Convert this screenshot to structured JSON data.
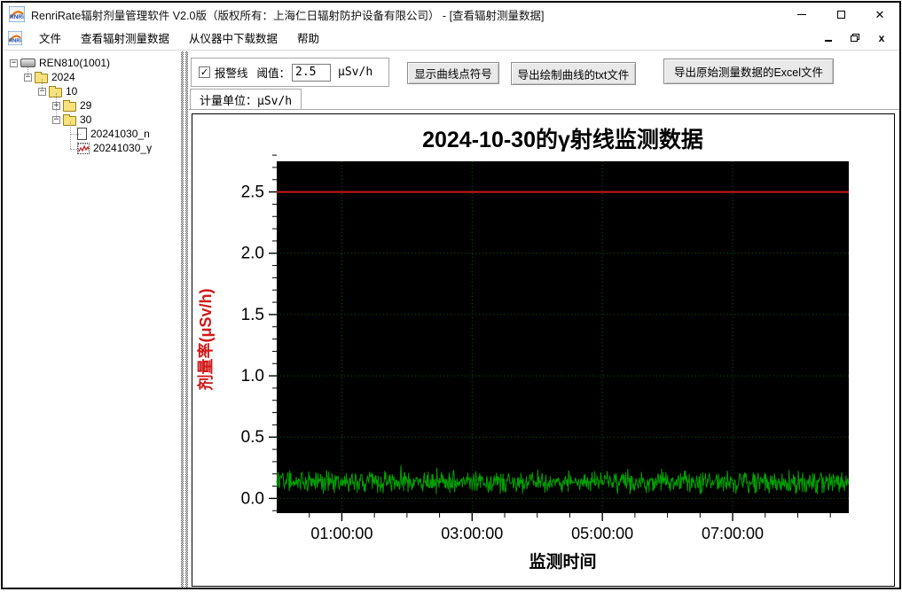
{
  "window": {
    "title": "RenriRate辐射剂量管理软件 V2.0版（版权所有：上海仁日辐射防护设备有限公司） - [查看辐射测量数据]",
    "controls": {
      "minimize": "minimize",
      "maximize": "maximize",
      "close": "✕"
    }
  },
  "menu": {
    "items": [
      {
        "name": "menu-item-file",
        "label": "文件"
      },
      {
        "name": "menu-item-view-data",
        "label": "查看辐射测量数据"
      },
      {
        "name": "menu-item-download",
        "label": "从仪器中下载数据"
      },
      {
        "name": "menu-item-help",
        "label": "帮助"
      }
    ],
    "mdi_controls": {
      "minimize": "minimize",
      "restore": "restore",
      "close": "x"
    }
  },
  "tree": {
    "items": [
      {
        "name": "tree-item-ren810",
        "label": "REN810(1001)",
        "level": 0,
        "expander": "minus",
        "icon": "device-icon"
      },
      {
        "name": "tree-item-2024",
        "label": "2024",
        "level": 1,
        "expander": "minus",
        "icon": "folder-icon"
      },
      {
        "name": "tree-item-10",
        "label": "10",
        "level": 2,
        "expander": "minus",
        "icon": "folder-icon"
      },
      {
        "name": "tree-item-29",
        "label": "29",
        "level": 3,
        "expander": "plus",
        "icon": "folder-icon"
      },
      {
        "name": "tree-item-30",
        "label": "30",
        "level": 3,
        "expander": "minus",
        "icon": "folder-icon"
      },
      {
        "name": "tree-item-20241030-n",
        "label": "20241030_n",
        "level": 4,
        "expander": "none",
        "icon": "document-icon"
      },
      {
        "name": "tree-item-20241030-g",
        "label": "20241030_γ",
        "level": 4,
        "expander": "none",
        "icon": "curve-file-icon"
      }
    ]
  },
  "controls": {
    "alarm_checkbox_label": "报警线",
    "alarm_checked": true,
    "alarm_checkmark": "✓",
    "threshold_label": "阈值：",
    "threshold_value": "2.5",
    "threshold_unit": "μSv/h",
    "buttons": [
      {
        "name": "show-points-button",
        "label": "显示曲线点符号"
      },
      {
        "name": "export-txt-button",
        "label": "导出绘制曲线的txt文件"
      },
      {
        "name": "export-excel-button",
        "label": "导出原始测量数据的Excel文件"
      }
    ],
    "unit_tab_label": "计量单位：μSv/h"
  },
  "chart_data": {
    "type": "line",
    "title": "2024-10-30的γ射线监测数据",
    "xlabel": "监测时间",
    "ylabel": "剂量率(μSv/h)",
    "plot_bg": "#000000",
    "ylim": [
      -0.12,
      2.75
    ],
    "y_ticks": [
      0.0,
      0.5,
      1.0,
      1.5,
      2.0,
      2.5
    ],
    "y_tick_labels": [
      "0.0",
      "0.5",
      "1.0",
      "1.5",
      "2.0",
      "2.5"
    ],
    "y_minor_step": 0.1,
    "x_start_seconds": 0,
    "x_end_seconds": 31620,
    "x_tick_seconds": [
      3600,
      10800,
      18000,
      25200
    ],
    "x_tick_labels": [
      "01:00:00",
      "03:00:00",
      "05:00:00",
      "07:00:00"
    ],
    "x_minor_interval_seconds": 1800,
    "grid": {
      "color": "#0d5a0d",
      "style": "dotted",
      "on": true
    },
    "alarm_line": {
      "value": 2.5,
      "color": "#d01818"
    },
    "series": [
      {
        "name": "gamma-dose-rate",
        "color": "#00a000",
        "sample_interval_seconds": 30,
        "baseline": 0.135,
        "noise_amplitude": 0.11,
        "value_min": 0.02,
        "value_max": 0.31,
        "seed": 20241030
      }
    ],
    "legend": "none"
  }
}
